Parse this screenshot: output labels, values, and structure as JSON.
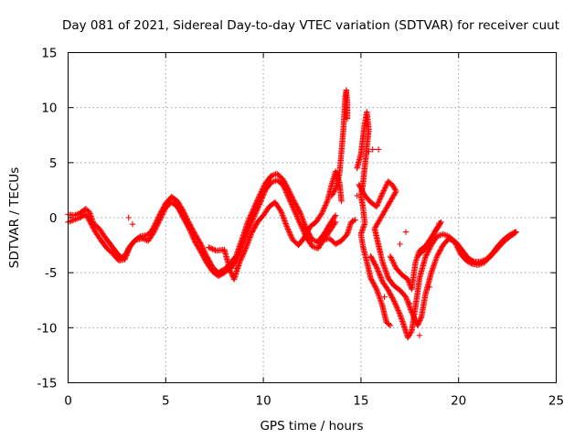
{
  "chart_data": {
    "type": "scatter",
    "title": "Day 081 of 2021, Sidereal Day-to-day VTEC variation (SDTVAR) for receiver cuut",
    "xlabel": "GPS time / hours",
    "ylabel": "SDTVAR / TECUs",
    "xlim": [
      0,
      25
    ],
    "ylim": [
      -15,
      15
    ],
    "xticks": [
      "0",
      "5",
      "10",
      "15",
      "20",
      "25"
    ],
    "yticks": [
      "15",
      "10",
      "5",
      "0",
      "-5",
      "-10",
      "-15"
    ],
    "grid": true,
    "marker": "+",
    "color": "#ff0000",
    "series": [
      {
        "name": "track-a",
        "points": [
          [
            0,
            0.3
          ],
          [
            0.3,
            0.2
          ],
          [
            0.6,
            0.4
          ],
          [
            0.9,
            0.8
          ],
          [
            1.1,
            0.5
          ],
          [
            1.3,
            -0.5
          ],
          [
            1.6,
            -1.0
          ],
          [
            1.9,
            -1.8
          ],
          [
            2.2,
            -2.5
          ],
          [
            2.5,
            -3.2
          ],
          [
            2.7,
            -3.6
          ],
          [
            2.9,
            -3.5
          ],
          [
            3.1,
            -2.8
          ],
          [
            3.4,
            -2.1
          ],
          [
            3.7,
            -1.7
          ],
          [
            4.0,
            -1.6
          ],
          [
            4.2,
            -1.4
          ],
          [
            4.4,
            -0.8
          ],
          [
            4.7,
            0.3
          ],
          [
            5.0,
            1.3
          ],
          [
            5.3,
            1.9
          ],
          [
            5.6,
            1.5
          ],
          [
            5.9,
            0.6
          ],
          [
            6.2,
            -0.5
          ],
          [
            6.5,
            -1.5
          ],
          [
            6.8,
            -2.4
          ],
          [
            7.1,
            -3.5
          ],
          [
            7.4,
            -4.5
          ],
          [
            7.7,
            -5.0
          ],
          [
            8.0,
            -4.7
          ],
          [
            8.3,
            -4.2
          ],
          [
            8.6,
            -3.5
          ],
          [
            8.9,
            -2.0
          ],
          [
            9.2,
            -0.4
          ],
          [
            9.5,
            0.8
          ],
          [
            9.8,
            2.0
          ],
          [
            10.1,
            3.1
          ],
          [
            10.4,
            3.8
          ],
          [
            10.7,
            4.0
          ],
          [
            11.0,
            3.5
          ],
          [
            11.3,
            2.5
          ],
          [
            11.6,
            1.4
          ],
          [
            11.9,
            0.4
          ],
          [
            12.2,
            -1.0
          ],
          [
            12.5,
            -2.0
          ],
          [
            12.8,
            -2.2
          ],
          [
            13.1,
            -1.5
          ],
          [
            13.4,
            -0.6
          ],
          [
            13.7,
            0.2
          ]
        ]
      },
      {
        "name": "track-b",
        "points": [
          [
            0,
            -0.4
          ],
          [
            0.3,
            -0.2
          ],
          [
            0.6,
            0.0
          ],
          [
            0.9,
            0.3
          ],
          [
            1.1,
            -0.3
          ],
          [
            1.4,
            -1.3
          ],
          [
            1.7,
            -2.1
          ],
          [
            2.0,
            -2.8
          ],
          [
            2.3,
            -3.3
          ],
          [
            2.6,
            -3.9
          ],
          [
            2.9,
            -3.8
          ],
          [
            3.2,
            -2.5
          ],
          [
            3.5,
            -2.0
          ],
          [
            3.8,
            -1.9
          ],
          [
            4.1,
            -2.1
          ],
          [
            4.4,
            -1.3
          ],
          [
            4.7,
            -0.2
          ],
          [
            5.0,
            0.9
          ],
          [
            5.3,
            1.4
          ],
          [
            5.6,
            1.0
          ],
          [
            5.9,
            0.0
          ],
          [
            6.2,
            -1.0
          ],
          [
            6.5,
            -2.2
          ],
          [
            6.8,
            -3.1
          ],
          [
            7.1,
            -4.1
          ],
          [
            7.4,
            -4.9
          ],
          [
            7.7,
            -5.3
          ],
          [
            8.0,
            -5.0
          ],
          [
            8.3,
            -4.6
          ],
          [
            8.6,
            -4.0
          ],
          [
            8.9,
            -2.6
          ],
          [
            9.2,
            -1.2
          ],
          [
            9.5,
            0.0
          ],
          [
            9.8,
            1.2
          ],
          [
            10.1,
            2.5
          ],
          [
            10.4,
            3.2
          ],
          [
            10.7,
            3.4
          ],
          [
            11.0,
            3.0
          ],
          [
            11.3,
            1.8
          ],
          [
            11.6,
            0.6
          ],
          [
            11.9,
            -0.6
          ],
          [
            12.2,
            -1.8
          ],
          [
            12.5,
            -2.6
          ],
          [
            12.8,
            -2.8
          ],
          [
            13.1,
            -2.0
          ],
          [
            13.4,
            -1.2
          ],
          [
            13.7,
            -0.4
          ]
        ]
      },
      {
        "name": "track-c",
        "points": [
          [
            7.2,
            -2.7
          ],
          [
            7.6,
            -3.0
          ],
          [
            8.0,
            -2.9
          ],
          [
            8.3,
            -4.8
          ],
          [
            8.5,
            -5.6
          ],
          [
            8.8,
            -4.0
          ],
          [
            9.1,
            -2.8
          ],
          [
            9.4,
            -1.4
          ],
          [
            9.7,
            -0.4
          ],
          [
            10.0,
            0.2
          ],
          [
            10.3,
            1.0
          ],
          [
            10.6,
            1.4
          ],
          [
            10.9,
            0.6
          ],
          [
            11.2,
            -0.8
          ],
          [
            11.5,
            -2.0
          ],
          [
            11.8,
            -2.5
          ],
          [
            12.1,
            -1.8
          ],
          [
            12.4,
            -0.8
          ],
          [
            12.7,
            -0.4
          ],
          [
            13.0,
            0.4
          ],
          [
            13.3,
            1.6
          ],
          [
            13.5,
            3.0
          ],
          [
            13.7,
            4.2
          ],
          [
            13.9,
            3.2
          ],
          [
            14.0,
            1.5
          ]
        ]
      },
      {
        "name": "track-d",
        "points": [
          [
            12.8,
            -2.3
          ],
          [
            13.1,
            -2.0
          ],
          [
            13.4,
            -1.9
          ],
          [
            13.7,
            -2.4
          ],
          [
            14.0,
            -2.1
          ],
          [
            14.3,
            -1.5
          ],
          [
            14.5,
            -0.4
          ],
          [
            14.7,
            -0.2
          ]
        ]
      },
      {
        "name": "spike-14",
        "points": [
          [
            13.5,
            2.0
          ],
          [
            13.7,
            2.6
          ],
          [
            13.9,
            4.0
          ],
          [
            14.0,
            6.0
          ],
          [
            14.1,
            8.0
          ],
          [
            14.15,
            9.6
          ],
          [
            14.2,
            11.0
          ],
          [
            14.25,
            11.6
          ],
          [
            14.3,
            10.4
          ],
          [
            14.3,
            9.0
          ]
        ]
      },
      {
        "name": "spike-15",
        "points": [
          [
            14.8,
            4.5
          ],
          [
            15.0,
            5.8
          ],
          [
            15.1,
            7.2
          ],
          [
            15.2,
            8.6
          ],
          [
            15.3,
            9.6
          ],
          [
            15.35,
            8.8
          ],
          [
            15.4,
            8.0
          ],
          [
            15.1,
            3.0
          ],
          [
            15.0,
            2.0
          ],
          [
            15.1,
            1.0
          ],
          [
            15.2,
            -0.5
          ],
          [
            15.0,
            -1.5
          ],
          [
            15.1,
            -2.6
          ],
          [
            15.3,
            -4.0
          ],
          [
            15.5,
            -5.5
          ],
          [
            15.8,
            -6.5
          ],
          [
            16.1,
            -8.0
          ],
          [
            16.3,
            -9.5
          ],
          [
            16.5,
            -9.8
          ]
        ]
      },
      {
        "name": "track-e",
        "points": [
          [
            14.9,
            3.0
          ],
          [
            15.2,
            2.0
          ],
          [
            15.5,
            1.4
          ],
          [
            15.8,
            1.0
          ],
          [
            16.1,
            2.2
          ],
          [
            16.4,
            3.3
          ],
          [
            16.6,
            3.0
          ],
          [
            16.8,
            2.4
          ],
          [
            15.7,
            -1.0
          ],
          [
            15.9,
            -2.5
          ],
          [
            16.1,
            -4.0
          ],
          [
            16.4,
            -5.5
          ],
          [
            16.7,
            -6.2
          ],
          [
            17.0,
            -6.6
          ],
          [
            17.3,
            -7.2
          ],
          [
            17.6,
            -8.6
          ],
          [
            17.9,
            -9.8
          ],
          [
            18.1,
            -9.0
          ],
          [
            18.3,
            -7.0
          ],
          [
            18.6,
            -5.0
          ],
          [
            18.9,
            -3.5
          ],
          [
            19.2,
            -2.5
          ],
          [
            19.5,
            -1.9
          ],
          [
            19.8,
            -2.2
          ],
          [
            20.1,
            -3.3
          ],
          [
            20.4,
            -3.9
          ],
          [
            20.7,
            -4.2
          ],
          [
            21.0,
            -4.3
          ],
          [
            21.3,
            -4.1
          ],
          [
            21.6,
            -3.6
          ],
          [
            21.9,
            -3.0
          ],
          [
            22.2,
            -2.4
          ],
          [
            22.5,
            -1.9
          ],
          [
            22.8,
            -1.5
          ],
          [
            22.95,
            -1.3
          ]
        ]
      },
      {
        "name": "track-f",
        "points": [
          [
            15.5,
            -3.5
          ],
          [
            15.8,
            -4.5
          ],
          [
            16.1,
            -5.8
          ],
          [
            16.4,
            -6.6
          ],
          [
            16.7,
            -7.6
          ],
          [
            17.0,
            -8.8
          ],
          [
            17.2,
            -9.8
          ],
          [
            17.4,
            -10.9
          ],
          [
            17.6,
            -10.3
          ],
          [
            17.8,
            -8.0
          ],
          [
            18.0,
            -5.5
          ],
          [
            18.3,
            -3.6
          ],
          [
            18.6,
            -2.5
          ],
          [
            18.9,
            -1.7
          ],
          [
            19.2,
            -1.5
          ],
          [
            19.5,
            -1.7
          ],
          [
            19.9,
            -2.3
          ],
          [
            20.2,
            -3.0
          ],
          [
            20.5,
            -3.7
          ],
          [
            20.8,
            -4.0
          ],
          [
            21.1,
            -4.0
          ],
          [
            21.4,
            -3.8
          ],
          [
            21.7,
            -3.3
          ],
          [
            22.0,
            -2.6
          ],
          [
            22.3,
            -2.0
          ],
          [
            22.6,
            -1.6
          ],
          [
            22.9,
            -1.3
          ]
        ]
      },
      {
        "name": "track-g",
        "points": [
          [
            16.5,
            -3.5
          ],
          [
            16.8,
            -4.6
          ],
          [
            17.1,
            -5.2
          ],
          [
            17.4,
            -5.6
          ],
          [
            17.6,
            -6.5
          ],
          [
            17.8,
            -4.0
          ],
          [
            18.0,
            -3.0
          ],
          [
            18.3,
            -2.6
          ],
          [
            18.6,
            -1.8
          ],
          [
            18.9,
            -1.0
          ],
          [
            19.1,
            -0.4
          ],
          [
            18.8,
            -1.2
          ],
          [
            18.5,
            -2.4
          ],
          [
            18.2,
            -3.0
          ],
          [
            17.9,
            -3.5
          ]
        ]
      },
      {
        "name": "scatter-outliers",
        "points": [
          [
            3.1,
            0.0
          ],
          [
            3.3,
            -0.6
          ],
          [
            8.6,
            -4.6
          ],
          [
            14.8,
            2.0
          ],
          [
            15.4,
            6.0
          ],
          [
            15.6,
            6.2
          ],
          [
            15.9,
            6.2
          ],
          [
            16.2,
            -7.2
          ],
          [
            16.4,
            -9.6
          ],
          [
            17.0,
            -2.4
          ],
          [
            17.3,
            -1.3
          ],
          [
            17.5,
            -7.8
          ],
          [
            18.0,
            -10.7
          ],
          [
            18.5,
            -6.3
          ],
          [
            19.0,
            -0.5
          ]
        ]
      }
    ]
  }
}
